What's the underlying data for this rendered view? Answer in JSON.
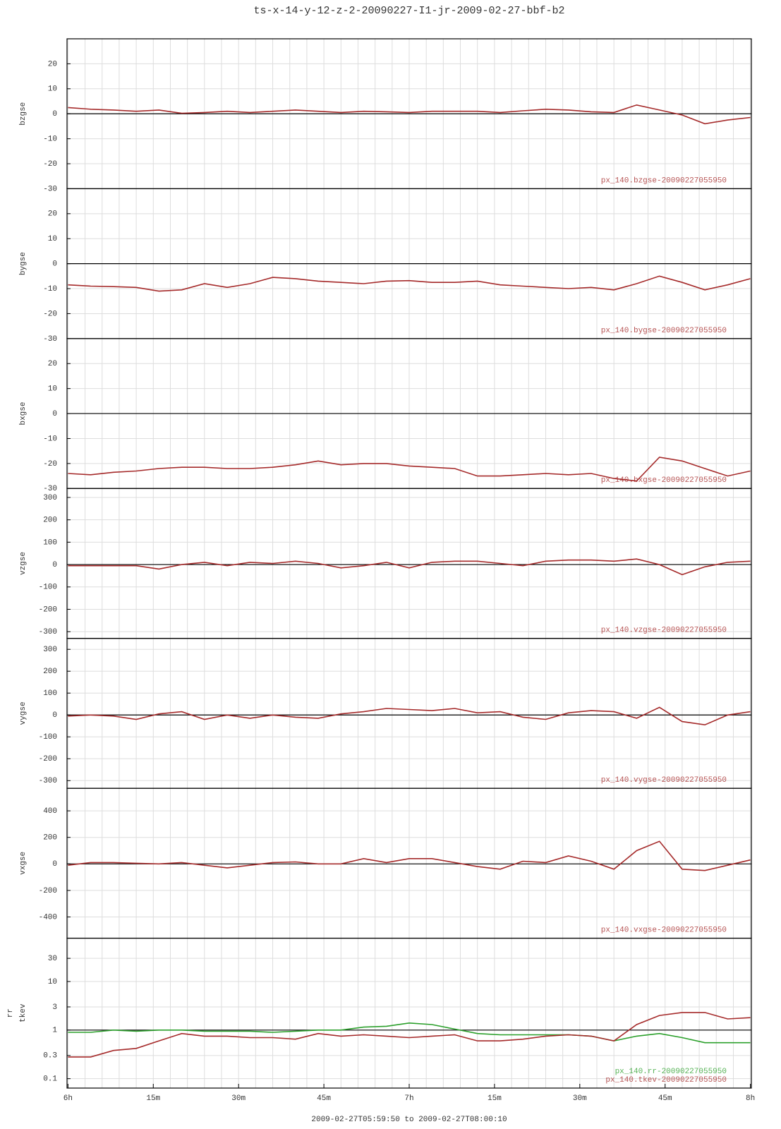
{
  "title": "ts-x-14-y-12-z-2-20090227-I1-jr-2009-02-27-bbf-b2",
  "x_axis": {
    "label": "2009-02-27T05:59:50 to 2009-02-27T08:00:10",
    "xlim": [
      -0.17,
      120.17
    ],
    "xticks": [
      {
        "value": 0,
        "label": "6h"
      },
      {
        "value": 15,
        "label": "15m"
      },
      {
        "value": 30,
        "label": "30m"
      },
      {
        "value": 45,
        "label": "45m"
      },
      {
        "value": 60,
        "label": "7h"
      },
      {
        "value": 75,
        "label": "15m"
      },
      {
        "value": 90,
        "label": "30m"
      },
      {
        "value": 105,
        "label": "45m"
      },
      {
        "value": 120,
        "label": "8h"
      }
    ]
  },
  "chart_data": [
    {
      "type": "line",
      "ylabel": "bzgse",
      "ylim": [
        -30,
        30
      ],
      "yticks": [
        -30,
        -20,
        -10,
        0,
        10,
        20
      ],
      "x": [
        0,
        4,
        8,
        12,
        16,
        20,
        24,
        28,
        32,
        36,
        40,
        44,
        48,
        52,
        56,
        60,
        64,
        68,
        72,
        76,
        80,
        84,
        88,
        92,
        96,
        100,
        104,
        108,
        112,
        116,
        120
      ],
      "series": [
        {
          "name": "px_140.bzgse-20090227055950",
          "color": "#a52a2a",
          "values": [
            2.5,
            1.8,
            1.5,
            1,
            1.5,
            0.2,
            0.5,
            1,
            0.5,
            1,
            1.5,
            1,
            0.5,
            1,
            0.8,
            0.5,
            1,
            1,
            1,
            0.5,
            1.2,
            1.8,
            1.5,
            0.8,
            0.5,
            3.5,
            1.5,
            -0.5,
            -4,
            -2.5,
            -1.5
          ]
        }
      ]
    },
    {
      "type": "line",
      "ylabel": "bygse",
      "ylim": [
        -30,
        30
      ],
      "yticks": [
        -30,
        -20,
        -10,
        0,
        10,
        20
      ],
      "x": [
        0,
        4,
        8,
        12,
        16,
        20,
        24,
        28,
        32,
        36,
        40,
        44,
        48,
        52,
        56,
        60,
        64,
        68,
        72,
        76,
        80,
        84,
        88,
        92,
        96,
        100,
        104,
        108,
        112,
        116,
        120
      ],
      "series": [
        {
          "name": "px_140.bygse-20090227055950",
          "color": "#a52a2a",
          "values": [
            -8.5,
            -9,
            -9.2,
            -9.5,
            -11,
            -10.5,
            -8,
            -9.5,
            -8,
            -5.5,
            -6,
            -7,
            -7.5,
            -8,
            -7,
            -6.8,
            -7.5,
            -7.5,
            -7,
            -8.5,
            -9,
            -9.5,
            -10,
            -9.5,
            -10.5,
            -8,
            -5,
            -7.5,
            -10.5,
            -8.5,
            -6
          ]
        }
      ]
    },
    {
      "type": "line",
      "ylabel": "bxgse",
      "ylim": [
        -30,
        30
      ],
      "yticks": [
        -30,
        -20,
        -10,
        0,
        10,
        20
      ],
      "x": [
        0,
        4,
        8,
        12,
        16,
        20,
        24,
        28,
        32,
        36,
        40,
        44,
        48,
        52,
        56,
        60,
        64,
        68,
        72,
        76,
        80,
        84,
        88,
        92,
        96,
        100,
        104,
        108,
        112,
        116,
        120
      ],
      "series": [
        {
          "name": "px_140.bxgse-20090227055950",
          "color": "#a52a2a",
          "values": [
            -24,
            -24.5,
            -23.5,
            -23,
            -22,
            -21.5,
            -21.5,
            -22,
            -22,
            -21.5,
            -20.5,
            -19,
            -20.5,
            -20,
            -20,
            -21,
            -21.5,
            -22,
            -25,
            -25,
            -24.5,
            -24,
            -24.5,
            -24,
            -26,
            -27,
            -17.5,
            -19,
            -22,
            -25,
            -23
          ]
        }
      ]
    },
    {
      "type": "line",
      "ylabel": "vzgse",
      "ylim": [
        -330,
        340
      ],
      "yticks": [
        -300,
        -200,
        -100,
        0,
        100,
        200,
        300
      ],
      "x": [
        0,
        4,
        8,
        12,
        16,
        20,
        24,
        28,
        32,
        36,
        40,
        44,
        48,
        52,
        56,
        60,
        64,
        68,
        72,
        76,
        80,
        84,
        88,
        92,
        96,
        100,
        104,
        108,
        112,
        116,
        120
      ],
      "series": [
        {
          "name": "px_140.vzgse-20090227055950",
          "color": "#a52a2a",
          "values": [
            -5,
            -5,
            -5,
            -5,
            -20,
            0,
            10,
            -5,
            10,
            5,
            15,
            5,
            -15,
            -5,
            10,
            -15,
            10,
            15,
            15,
            5,
            -5,
            15,
            20,
            20,
            15,
            25,
            0,
            -45,
            -10,
            10,
            15
          ]
        }
      ]
    },
    {
      "type": "line",
      "ylabel": "vygse",
      "ylim": [
        -335,
        350
      ],
      "yticks": [
        -300,
        -200,
        -100,
        0,
        100,
        200,
        300
      ],
      "x": [
        0,
        4,
        8,
        12,
        16,
        20,
        24,
        28,
        32,
        36,
        40,
        44,
        48,
        52,
        56,
        60,
        64,
        68,
        72,
        76,
        80,
        84,
        88,
        92,
        96,
        100,
        104,
        108,
        112,
        116,
        120
      ],
      "series": [
        {
          "name": "px_140.vygse-20090227055950",
          "color": "#a52a2a",
          "values": [
            -5,
            0,
            -5,
            -20,
            5,
            15,
            -20,
            0,
            -15,
            0,
            -10,
            -15,
            5,
            15,
            30,
            25,
            20,
            30,
            10,
            15,
            -10,
            -20,
            10,
            20,
            15,
            -15,
            35,
            -30,
            -45,
            0,
            15
          ]
        }
      ]
    },
    {
      "type": "line",
      "ylabel": "vxgse",
      "ylim": [
        -560,
        570
      ],
      "yticks": [
        -400,
        -200,
        0,
        200,
        400
      ],
      "x": [
        0,
        4,
        8,
        12,
        16,
        20,
        24,
        28,
        32,
        36,
        40,
        44,
        48,
        52,
        56,
        60,
        64,
        68,
        72,
        76,
        80,
        84,
        88,
        92,
        96,
        100,
        104,
        108,
        112,
        116,
        120
      ],
      "series": [
        {
          "name": "px_140.vxgse-20090227055950",
          "color": "#a52a2a",
          "values": [
            -10,
            10,
            10,
            5,
            0,
            10,
            -10,
            -30,
            -10,
            10,
            15,
            0,
            0,
            40,
            10,
            40,
            40,
            10,
            -20,
            -40,
            20,
            10,
            60,
            20,
            -40,
            100,
            170,
            -40,
            -50,
            -10,
            30
          ]
        }
      ]
    },
    {
      "type": "line",
      "ylabel": [
        "rr",
        "tkev"
      ],
      "log": true,
      "ylim": [
        0.064,
        78
      ],
      "yticks": [
        0.1,
        0.3,
        1,
        3,
        10,
        30
      ],
      "x": [
        0,
        4,
        8,
        12,
        16,
        20,
        24,
        28,
        32,
        36,
        40,
        44,
        48,
        52,
        56,
        60,
        64,
        68,
        72,
        76,
        80,
        84,
        88,
        92,
        96,
        100,
        104,
        108,
        112,
        116,
        120
      ],
      "series": [
        {
          "name": "px_140.rr-20090227055950",
          "color": "#2ca02c",
          "values": [
            0.9,
            0.9,
            1.0,
            0.95,
            1.0,
            1.0,
            0.95,
            0.95,
            0.95,
            0.9,
            0.95,
            1.0,
            1.0,
            1.15,
            1.2,
            1.4,
            1.3,
            1.05,
            0.85,
            0.8,
            0.8,
            0.8,
            0.8,
            0.75,
            0.6,
            0.75,
            0.85,
            0.7,
            0.55,
            0.55,
            0.55
          ]
        },
        {
          "name": "px_140.tkev-20090227055950",
          "color": "#a52a2a",
          "values": [
            0.28,
            0.28,
            0.38,
            0.42,
            0.6,
            0.85,
            0.75,
            0.75,
            0.7,
            0.7,
            0.65,
            0.85,
            0.75,
            0.8,
            0.75,
            0.7,
            0.75,
            0.8,
            0.6,
            0.6,
            0.65,
            0.75,
            0.8,
            0.75,
            0.6,
            1.3,
            2.0,
            2.3,
            2.3,
            1.7,
            1.8
          ]
        }
      ]
    }
  ]
}
